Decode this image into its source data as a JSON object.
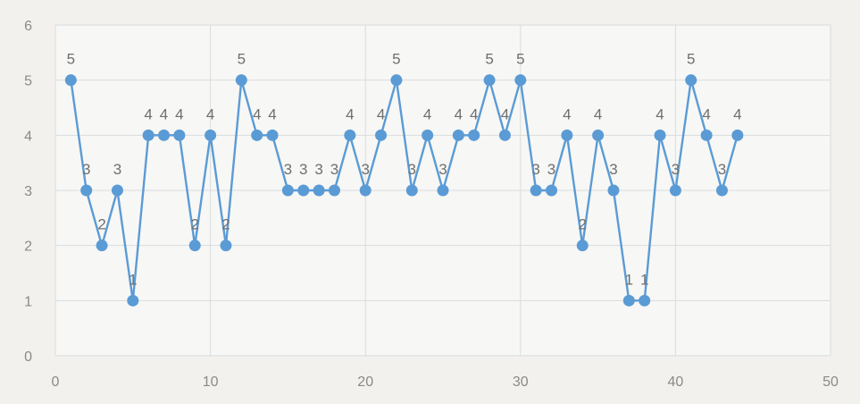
{
  "chart_data": {
    "type": "scatter",
    "title": "",
    "xlabel": "",
    "ylabel": "",
    "xlim": [
      0,
      50
    ],
    "ylim": [
      0,
      6
    ],
    "x_ticks": [
      0,
      10,
      20,
      30,
      40,
      50
    ],
    "y_ticks": [
      0,
      1,
      2,
      3,
      4,
      5,
      6
    ],
    "x_tick_labels": [
      "0",
      "10",
      "20",
      "30",
      "40",
      "50"
    ],
    "y_tick_labels": [
      "0",
      "1",
      "2",
      "3",
      "4",
      "5",
      "6"
    ],
    "grid": true,
    "lines_connect_points": true,
    "data_labels": true,
    "series": [
      {
        "color": "#5b9bd5",
        "x": [
          1,
          2,
          3,
          4,
          5,
          6,
          7,
          8,
          9,
          10,
          11,
          12,
          13,
          14,
          15,
          16,
          17,
          18,
          19,
          20,
          21,
          22,
          23,
          24,
          25,
          26,
          27,
          28,
          29,
          30,
          31,
          32,
          33,
          34,
          35,
          36,
          37,
          38,
          39,
          40,
          41,
          42,
          43,
          44
        ],
        "y": [
          5,
          3,
          2,
          3,
          1,
          4,
          4,
          4,
          2,
          4,
          2,
          5,
          4,
          4,
          3,
          3,
          3,
          3,
          4,
          3,
          4,
          5,
          3,
          4,
          3,
          4,
          4,
          5,
          4,
          5,
          3,
          3,
          4,
          2,
          4,
          3,
          1,
          1,
          4,
          3,
          5,
          4,
          3,
          4
        ],
        "labels": [
          "5",
          "3",
          "2",
          "3",
          "1",
          "4",
          "4",
          "4",
          "2",
          "4",
          "2",
          "5",
          "4",
          "4",
          "3",
          "3",
          "3",
          "3",
          "4",
          "3",
          "4",
          "5",
          "3",
          "4",
          "3",
          "4",
          "4",
          "5",
          "4",
          "5",
          "3",
          "3",
          "4",
          "2",
          "4",
          "3",
          "1",
          "1",
          "4",
          "3",
          "5",
          "4",
          "3",
          "4"
        ]
      }
    ]
  }
}
